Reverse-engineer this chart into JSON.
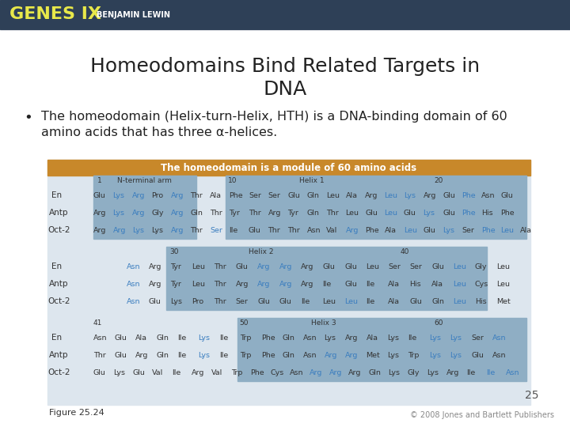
{
  "header_bg": "#2e4057",
  "header_text": "GENES IX",
  "header_text_color": "#e8e84a",
  "header_subtext": "BENJAMIN LEWIN",
  "header_subtext_color": "#ffffff",
  "title": "Homeodomains Bind Related Targets in\nDNA",
  "title_fontsize": 18,
  "title_color": "#222222",
  "bullet_text": "The homeodomain (Helix-turn-Helix, HTH) is a DNA-binding domain of 60\namino acids that has three α-helices.",
  "bullet_fontsize": 11.5,
  "bullet_color": "#222222",
  "table_title": "The homeodomain is a module of 60 amino acids",
  "table_title_bg": "#c8882a",
  "table_title_color": "#ffffff",
  "table_bg": "#dde6ee",
  "table_highlight_bg": "#8faec4",
  "figure_label": "Figure 25.24",
  "figure_number": "25",
  "copyright": "© 2008 Jones and Bartlett Publishers"
}
